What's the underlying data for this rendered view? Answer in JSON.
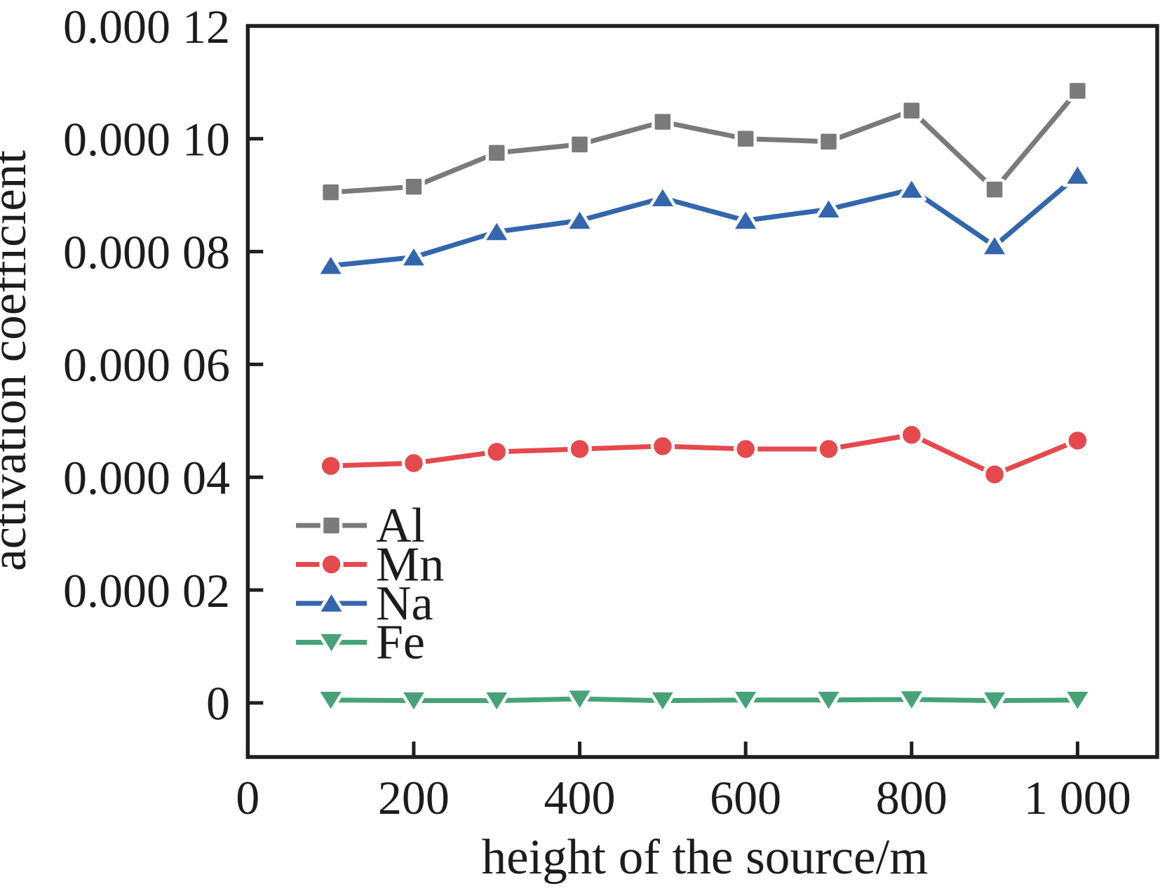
{
  "figure": {
    "background": "#ffffff",
    "frame_color": "#1f1f1f",
    "text_color": "#1c1c1c"
  },
  "chart_data": {
    "type": "line",
    "title": "",
    "xlabel": "height of the source/m",
    "ylabel": "activation coefficient",
    "x": [
      100,
      200,
      300,
      400,
      500,
      600,
      700,
      800,
      900,
      1000
    ],
    "series": [
      {
        "name": "Al",
        "color": "#7a7a7a",
        "marker": "square",
        "values": [
          9.05e-05,
          9.15e-05,
          9.75e-05,
          9.9e-05,
          0.000103,
          0.0001,
          9.95e-05,
          0.000105,
          9.1e-05,
          0.0001085
        ]
      },
      {
        "name": "Mn",
        "color": "#e5494e",
        "marker": "circle",
        "values": [
          4.2e-05,
          4.25e-05,
          4.45e-05,
          4.5e-05,
          4.55e-05,
          4.5e-05,
          4.5e-05,
          4.75e-05,
          4.05e-05,
          4.65e-05
        ]
      },
      {
        "name": "Na",
        "color": "#3366ad",
        "marker": "triangle-up",
        "values": [
          7.75e-05,
          7.9e-05,
          8.35e-05,
          8.55e-05,
          8.95e-05,
          8.55e-05,
          8.75e-05,
          9.1e-05,
          8.1e-05,
          9.35e-05
        ]
      },
      {
        "name": "Fe",
        "color": "#47a377",
        "marker": "triangle-down",
        "values": [
          5e-07,
          4e-07,
          4e-07,
          7e-07,
          4e-07,
          5e-07,
          5e-07,
          6e-07,
          4e-07,
          5e-07
        ]
      }
    ],
    "xlim": [
      0,
      1096
    ],
    "ylim": [
      -9.6e-06,
      0.00012
    ],
    "xticks": {
      "values": [
        0,
        200,
        400,
        600,
        800,
        1000
      ],
      "labels": [
        "0",
        "200",
        "400",
        "600",
        "800",
        "1 000"
      ]
    },
    "yticks": {
      "values": [
        0,
        2e-05,
        4e-05,
        6e-05,
        8e-05,
        0.0001,
        0.00012
      ],
      "labels": [
        "0",
        "0.000 02",
        "0.000 04",
        "0.000 06",
        "0.000 08",
        "0.000 10",
        "0.000 12"
      ]
    },
    "legend": {
      "position": "inside-lower-left",
      "entries": [
        "Al",
        "Mn",
        "Na",
        "Fe"
      ]
    },
    "grid": false
  }
}
